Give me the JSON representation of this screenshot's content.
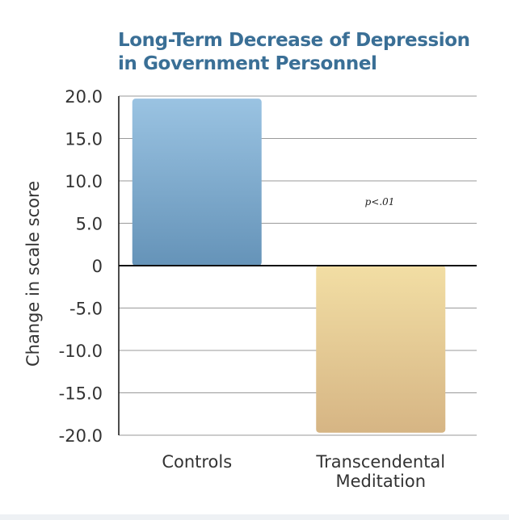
{
  "chart_data": {
    "type": "bar",
    "title": [
      "Long-Term Decrease of Depression",
      "in Government Personnel"
    ],
    "ylabel": "Change in scale score",
    "xlabel": "",
    "categories": [
      [
        "Controls"
      ],
      [
        "Transcendental",
        "Meditation"
      ]
    ],
    "values": [
      19.7,
      -19.7
    ],
    "ylim": [
      -20,
      20
    ],
    "yticks": [
      20,
      15,
      10,
      5,
      0,
      -5,
      -10,
      -15,
      -20
    ],
    "ytick_labels": [
      "20.0",
      "15.0",
      "10.0",
      "5.0",
      "0",
      "-5.0",
      "-10.0",
      "-15.0",
      "-20.0"
    ],
    "grid": true,
    "annotation": "p<.01",
    "colors": {
      "controls_top": "#9ac3e2",
      "controls_bottom": "#6593b8",
      "tm_top": "#f2dea4",
      "tm_bottom": "#d6b584",
      "title": "#3a6f96"
    }
  }
}
